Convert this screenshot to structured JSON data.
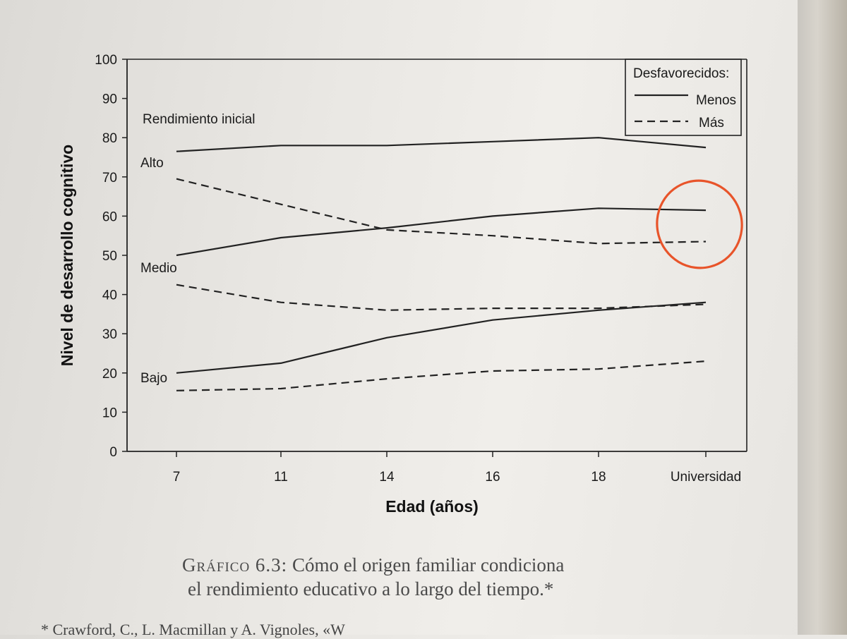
{
  "chart_data": {
    "type": "line",
    "categories": [
      "7",
      "11",
      "14",
      "16",
      "18",
      "Universidad"
    ],
    "xlabel": "Edad (años)",
    "ylabel": "Nivel de desarrollo cognitivo",
    "ylim": [
      0,
      100
    ],
    "yticks": [
      0,
      10,
      20,
      30,
      40,
      50,
      60,
      70,
      80,
      90,
      100
    ],
    "grid": false,
    "legend": {
      "position": "top-right",
      "title": "Desfavorecidos:",
      "entries": [
        {
          "label": "Menos",
          "style": "solid"
        },
        {
          "label": "Más",
          "style": "dashed"
        }
      ]
    },
    "annotations": {
      "header": "Rendimiento inicial",
      "alto": "Alto",
      "medio": "Medio",
      "bajo": "Bajo"
    },
    "series": [
      {
        "group": "Alto",
        "style": "solid",
        "values": [
          76.5,
          78,
          78,
          79,
          80,
          77.5
        ]
      },
      {
        "group": "Alto",
        "style": "dashed",
        "values": [
          69.5,
          63,
          56.5,
          55,
          53,
          53.5
        ]
      },
      {
        "group": "Medio",
        "style": "solid",
        "values": [
          50,
          54.5,
          57,
          60,
          62,
          61.5
        ]
      },
      {
        "group": "Medio",
        "style": "dashed",
        "values": [
          42.5,
          38,
          36,
          36.5,
          36.5,
          37.5
        ]
      },
      {
        "group": "Bajo",
        "style": "solid",
        "values": [
          20,
          22.5,
          29,
          33.5,
          36,
          38
        ]
      },
      {
        "group": "Bajo",
        "style": "dashed",
        "values": [
          15.5,
          16,
          18.5,
          20.5,
          21,
          23
        ]
      }
    ],
    "highlight_color": "#e8542a"
  },
  "caption": {
    "label": "Gráfico 6.3:",
    "line1": " Cómo el origen familiar condiciona",
    "line2": "el rendimiento educativo a lo largo del tiempo.*"
  },
  "footnote": "* Crawford, C., L. Macmillan y A. Vignoles, «W"
}
